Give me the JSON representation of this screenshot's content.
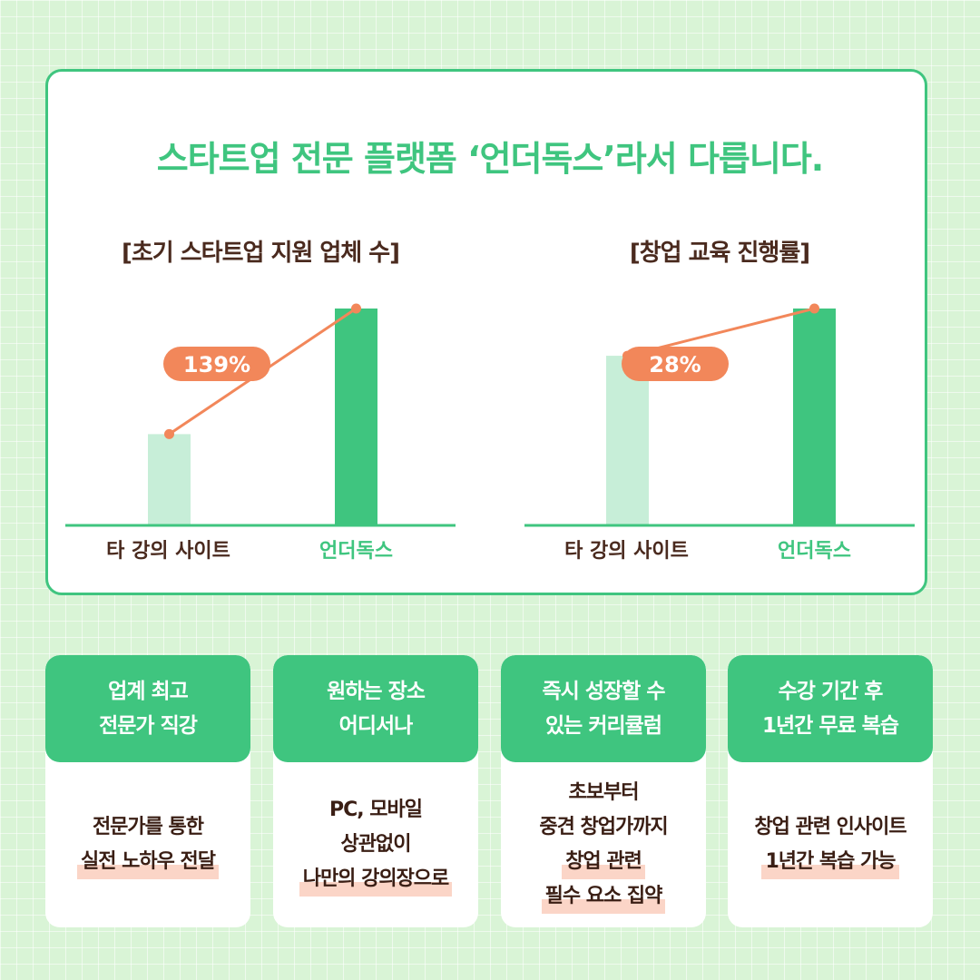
{
  "headline": "스타트업 전문 플랫폼 ‘언더독스’라서 다릅니다.",
  "colors": {
    "primary_green": "#3fc57f",
    "light_green": "#c7eed8",
    "accent_orange": "#f2875a",
    "text_brown": "#4a2a1e"
  },
  "chart_data": [
    {
      "type": "bar",
      "title": "[초기 스타트업 지원 업체 수]",
      "categories": [
        "타 강의 사이트",
        "언더독스"
      ],
      "values": [
        1.0,
        2.39
      ],
      "annotation": "139%",
      "ylim": [
        0,
        2.39
      ],
      "grid": false
    },
    {
      "type": "bar",
      "title": "[창업 교육 진행률]",
      "categories": [
        "타 강의 사이트",
        "언더독스"
      ],
      "values": [
        1.0,
        1.28
      ],
      "annotation": "28%",
      "ylim": [
        0,
        1.28
      ],
      "grid": false
    }
  ],
  "cards": [
    {
      "head": [
        "업계 최고",
        "전문가 직강"
      ],
      "body": [
        {
          "text": "전문가를 통한",
          "hl": false
        },
        {
          "text": "실전 노하우 전달",
          "hl": true
        }
      ]
    },
    {
      "head": [
        "원하는 장소",
        "어디서나"
      ],
      "body": [
        {
          "text": "PC, 모바일",
          "hl": false
        },
        {
          "text": "상관없이",
          "hl": false
        },
        {
          "text": "나만의 강의장으로",
          "hl": true
        }
      ]
    },
    {
      "head": [
        "즉시 성장할 수",
        "있는 커리큘럼"
      ],
      "body": [
        {
          "text": "초보부터",
          "hl": false
        },
        {
          "text": "중견 창업가까지",
          "hl": false
        },
        {
          "text": "창업 관련",
          "hl": true
        },
        {
          "text": "필수 요소 집약",
          "hl": true
        }
      ]
    },
    {
      "head": [
        "수강 기간 후",
        "1년간 무료 복습"
      ],
      "body": [
        {
          "text": "창업 관련 인사이트",
          "hl": false
        },
        {
          "text": "1년간 복습 가능",
          "hl": true
        }
      ]
    }
  ]
}
